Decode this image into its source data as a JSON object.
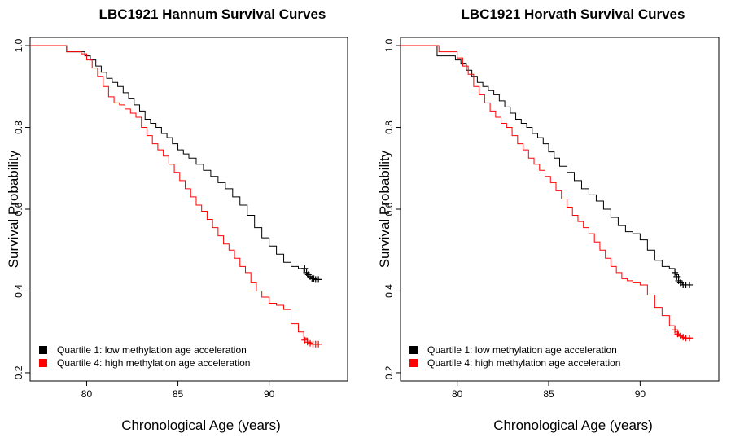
{
  "chart_data": [
    {
      "type": "line",
      "step": true,
      "title": "LBC1921 Hannum Survival Curves",
      "xlabel": "Chronological Age (years)",
      "ylabel": "Survival Probability",
      "xlim": [
        76.9,
        94.3
      ],
      "ylim": [
        0.18,
        1.02
      ],
      "xticks": [
        "80",
        "85",
        "90"
      ],
      "yticks": [
        "0.2",
        "0.4",
        "0.6",
        "0.8",
        "1.0"
      ],
      "legend": "bottom-left",
      "series": [
        {
          "name": "Quartile 1: low methylation age acceleration",
          "color": "#000000",
          "x": [
            76.9,
            78.9,
            79.9,
            80.2,
            80.5,
            80.8,
            81.1,
            81.4,
            81.7,
            82.0,
            82.3,
            82.6,
            82.9,
            83.2,
            83.5,
            83.8,
            84.1,
            84.4,
            84.7,
            85.0,
            85.3,
            85.6,
            86.0,
            86.4,
            86.8,
            87.2,
            87.6,
            88.0,
            88.4,
            88.8,
            89.2,
            89.6,
            90.0,
            90.4,
            90.8,
            91.2,
            91.6,
            91.9,
            92.1,
            92.3,
            92.5,
            92.8
          ],
          "y": [
            1.0,
            0.985,
            0.975,
            0.965,
            0.95,
            0.935,
            0.92,
            0.91,
            0.9,
            0.885,
            0.87,
            0.855,
            0.84,
            0.82,
            0.81,
            0.8,
            0.785,
            0.775,
            0.76,
            0.745,
            0.735,
            0.725,
            0.71,
            0.695,
            0.68,
            0.665,
            0.65,
            0.63,
            0.61,
            0.585,
            0.555,
            0.53,
            0.51,
            0.49,
            0.47,
            0.46,
            0.455,
            0.445,
            0.435,
            0.43,
            0.428,
            0.428
          ],
          "censor_x": [
            91.95,
            92.05,
            92.15,
            92.25,
            92.35,
            92.45,
            92.55,
            92.7
          ],
          "censor_y": [
            0.455,
            0.445,
            0.44,
            0.435,
            0.43,
            0.43,
            0.428,
            0.428
          ]
        },
        {
          "name": "Quartile 4: high methylation age acceleration",
          "color": "#ff0000",
          "x": [
            76.9,
            78.9,
            79.7,
            80.0,
            80.3,
            80.6,
            80.9,
            81.2,
            81.5,
            81.8,
            82.1,
            82.4,
            82.7,
            83.0,
            83.3,
            83.6,
            83.9,
            84.2,
            84.5,
            84.8,
            85.1,
            85.4,
            85.7,
            86.0,
            86.3,
            86.6,
            86.9,
            87.2,
            87.5,
            87.8,
            88.1,
            88.4,
            88.7,
            89.0,
            89.3,
            89.6,
            90.0,
            90.4,
            90.8,
            91.2,
            91.6,
            91.9,
            92.1,
            92.3,
            92.6,
            92.8
          ],
          "y": [
            1.0,
            0.985,
            0.98,
            0.965,
            0.945,
            0.925,
            0.9,
            0.875,
            0.86,
            0.855,
            0.845,
            0.835,
            0.825,
            0.8,
            0.78,
            0.76,
            0.745,
            0.73,
            0.71,
            0.69,
            0.67,
            0.65,
            0.63,
            0.61,
            0.595,
            0.575,
            0.555,
            0.535,
            0.515,
            0.5,
            0.48,
            0.46,
            0.445,
            0.42,
            0.4,
            0.385,
            0.37,
            0.365,
            0.355,
            0.32,
            0.3,
            0.285,
            0.275,
            0.27,
            0.27,
            0.27
          ],
          "censor_x": [
            91.95,
            92.1,
            92.25,
            92.4,
            92.55,
            92.7
          ],
          "censor_y": [
            0.28,
            0.275,
            0.272,
            0.27,
            0.27,
            0.27
          ]
        }
      ]
    },
    {
      "type": "line",
      "step": true,
      "title": "LBC1921 Horvath Survival Curves",
      "xlabel": "Chronological Age (years)",
      "ylabel": "Survival Probability",
      "xlim": [
        76.9,
        94.3
      ],
      "ylim": [
        0.18,
        1.02
      ],
      "xticks": [
        "80",
        "85",
        "90"
      ],
      "yticks": [
        "0.2",
        "0.4",
        "0.6",
        "0.8",
        "1.0"
      ],
      "legend": "bottom-left",
      "series": [
        {
          "name": "Quartile 1: low methylation age acceleration",
          "color": "#000000",
          "x": [
            76.9,
            78.9,
            79.9,
            80.2,
            80.5,
            80.8,
            81.1,
            81.4,
            81.7,
            82.0,
            82.3,
            82.6,
            82.9,
            83.2,
            83.5,
            83.8,
            84.1,
            84.4,
            84.7,
            85.0,
            85.3,
            85.6,
            86.0,
            86.4,
            86.8,
            87.2,
            87.6,
            88.0,
            88.4,
            88.8,
            89.2,
            89.6,
            90.0,
            90.4,
            90.8,
            91.2,
            91.6,
            91.9,
            92.1,
            92.3,
            92.5,
            92.8
          ],
          "y": [
            1.0,
            0.975,
            0.965,
            0.955,
            0.94,
            0.925,
            0.91,
            0.9,
            0.89,
            0.88,
            0.865,
            0.85,
            0.835,
            0.82,
            0.81,
            0.8,
            0.785,
            0.775,
            0.76,
            0.74,
            0.725,
            0.705,
            0.69,
            0.67,
            0.65,
            0.635,
            0.62,
            0.6,
            0.58,
            0.56,
            0.545,
            0.54,
            0.525,
            0.5,
            0.475,
            0.46,
            0.455,
            0.44,
            0.425,
            0.415,
            0.415,
            0.415
          ],
          "censor_x": [
            91.9,
            92.0,
            92.1,
            92.2,
            92.35,
            92.5,
            92.7
          ],
          "censor_y": [
            0.445,
            0.435,
            0.425,
            0.42,
            0.415,
            0.415,
            0.415
          ]
        },
        {
          "name": "Quartile 4: high methylation age acceleration",
          "color": "#ff0000",
          "x": [
            76.9,
            79.0,
            80.0,
            80.3,
            80.6,
            80.9,
            81.2,
            81.5,
            81.8,
            82.1,
            82.4,
            82.7,
            83.0,
            83.3,
            83.6,
            83.9,
            84.2,
            84.5,
            84.8,
            85.1,
            85.4,
            85.7,
            86.0,
            86.3,
            86.6,
            86.9,
            87.2,
            87.5,
            87.8,
            88.1,
            88.4,
            88.7,
            89.0,
            89.3,
            89.6,
            90.0,
            90.4,
            90.8,
            91.2,
            91.6,
            91.9,
            92.1,
            92.3,
            92.6,
            92.8
          ],
          "y": [
            1.0,
            0.985,
            0.97,
            0.95,
            0.93,
            0.9,
            0.88,
            0.86,
            0.84,
            0.825,
            0.81,
            0.8,
            0.78,
            0.76,
            0.745,
            0.725,
            0.71,
            0.695,
            0.68,
            0.665,
            0.645,
            0.625,
            0.605,
            0.585,
            0.57,
            0.555,
            0.54,
            0.52,
            0.5,
            0.48,
            0.46,
            0.445,
            0.43,
            0.425,
            0.42,
            0.415,
            0.39,
            0.36,
            0.34,
            0.315,
            0.3,
            0.29,
            0.285,
            0.285,
            0.285
          ],
          "censor_x": [
            91.9,
            92.05,
            92.2,
            92.35,
            92.5,
            92.7
          ],
          "censor_y": [
            0.305,
            0.295,
            0.29,
            0.287,
            0.285,
            0.285
          ]
        }
      ]
    }
  ]
}
